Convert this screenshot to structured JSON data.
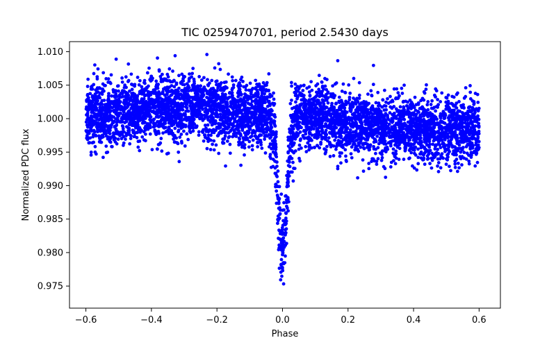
{
  "chart_data": {
    "type": "scatter",
    "title": "TIC 0259470701, period 2.5430 days",
    "xlabel": "Phase",
    "ylabel": "Normalized PDC flux",
    "xlim": [
      -0.65,
      0.665
    ],
    "ylim": [
      0.9717,
      1.0115
    ],
    "xticks": [
      -0.6,
      -0.4,
      -0.2,
      0.0,
      0.2,
      0.4,
      0.6
    ],
    "xtick_labels": [
      "−0.6",
      "−0.4",
      "−0.2",
      "0.0",
      "0.2",
      "0.4",
      "0.6"
    ],
    "yticks": [
      0.975,
      0.98,
      0.985,
      0.99,
      0.995,
      1.0,
      1.005,
      1.01
    ],
    "ytick_labels": [
      "0.975",
      "0.980",
      "0.985",
      "0.990",
      "0.995",
      "1.000",
      "1.005",
      "1.010"
    ],
    "marker_color": "#0000ff",
    "series": [
      {
        "name": "PDC flux",
        "phase_range": [
          -0.6,
          0.6
        ],
        "n_points": 5200,
        "baseline_flux": 1.0,
        "transit_center": 0.0,
        "transit_depth": 0.0195,
        "transit_half_width": 0.028,
        "scatter": 0.0024,
        "min_flux": 0.9733,
        "max_flux": 1.0104
      }
    ]
  },
  "colors": {
    "points": "#0000ff",
    "axes": "#000000",
    "background": "#ffffff"
  }
}
